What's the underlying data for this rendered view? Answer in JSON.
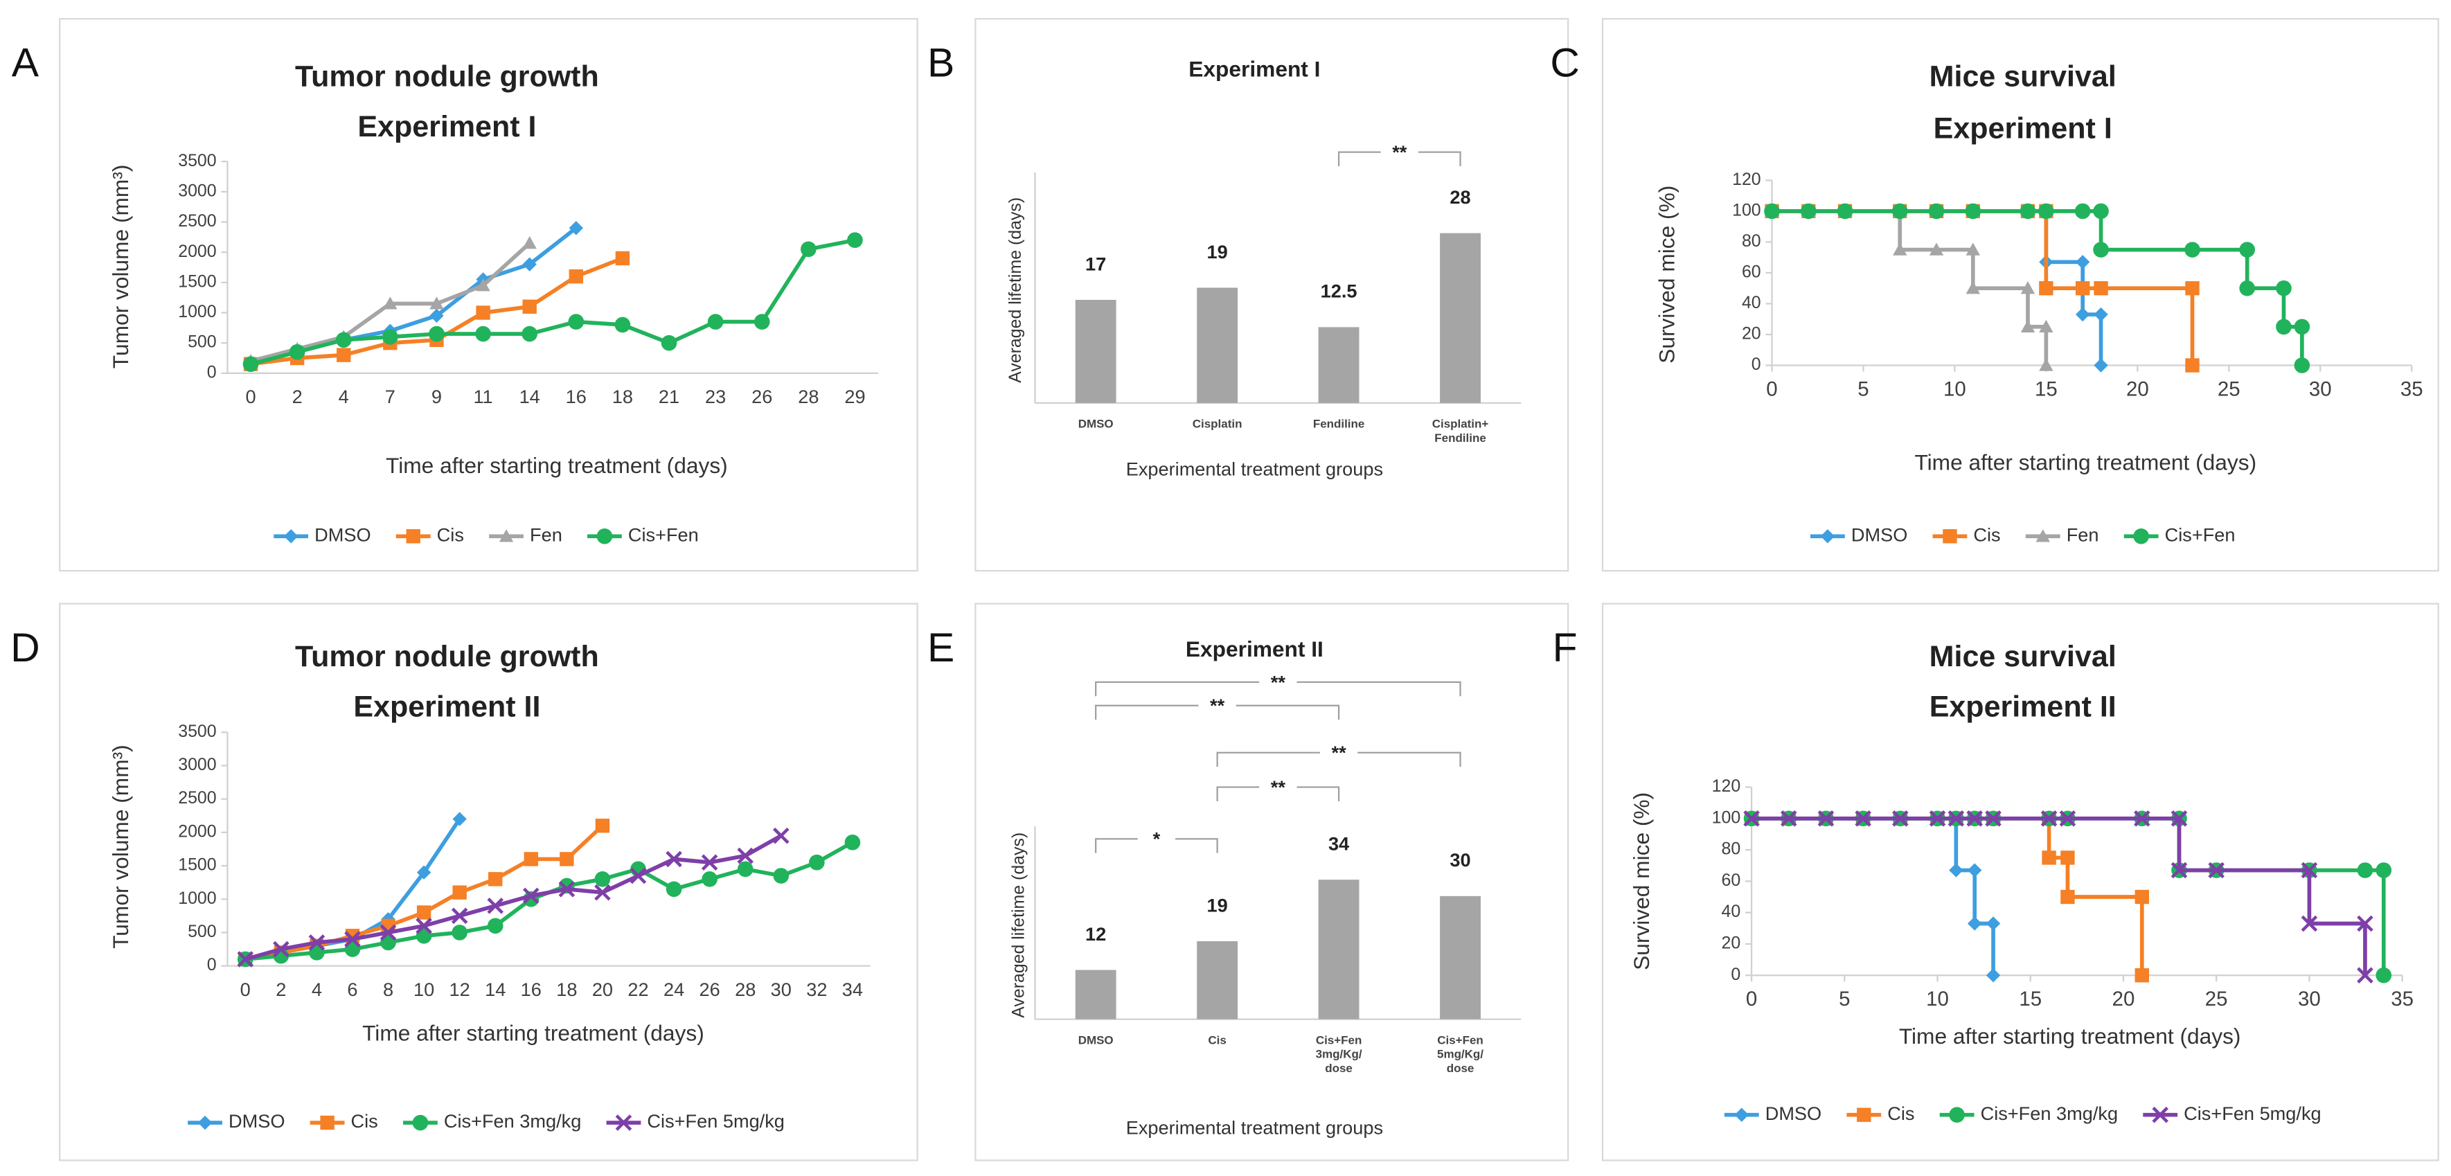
{
  "chart_data": [
    {
      "panel": "A",
      "type": "line",
      "title": "Tumor nodule growth",
      "subtitle": "Experiment I",
      "x_label": "Time after starting treatment (days)",
      "y_label": "Tumor volume (mm³)",
      "categories": [
        "0",
        "2",
        "4",
        "7",
        "9",
        "11",
        "14",
        "16",
        "18",
        "21",
        "23",
        "26",
        "28",
        "29"
      ],
      "ylim": [
        0,
        3500
      ],
      "yticks": [
        0,
        500,
        1000,
        1500,
        2000,
        2500,
        3000,
        3500
      ],
      "legend": "bottom",
      "series": [
        {
          "name": "DMSO",
          "color": "#3d9ee0",
          "marker": "diamond",
          "values": [
            150,
            350,
            550,
            700,
            950,
            1550,
            1800,
            2400,
            null,
            null,
            null,
            null,
            null,
            null
          ]
        },
        {
          "name": "Cis",
          "color": "#f58025",
          "marker": "square",
          "values": [
            150,
            250,
            300,
            500,
            550,
            1000,
            1100,
            1600,
            1900,
            null,
            null,
            null,
            null,
            null
          ]
        },
        {
          "name": "Fen",
          "color": "#a5a5a5",
          "marker": "triangle",
          "values": [
            200,
            400,
            600,
            1150,
            1150,
            1450,
            2150,
            null,
            null,
            null,
            null,
            null,
            null,
            null
          ]
        },
        {
          "name": "Cis+Fen",
          "color": "#21b35b",
          "marker": "circle",
          "values": [
            150,
            350,
            550,
            600,
            650,
            650,
            650,
            850,
            800,
            500,
            850,
            850,
            2050,
            2200
          ]
        }
      ]
    },
    {
      "panel": "B",
      "type": "bar",
      "title": "Experiment I",
      "x_label": "Experimental treatment groups",
      "y_label": "Averaged lifetime (days)",
      "categories": [
        "DMSO",
        "Cisplatin",
        "Fendiline",
        "Cisplatin+\nFendiline"
      ],
      "values": [
        17,
        19,
        12.5,
        28
      ],
      "color": "#a5a5a5",
      "ylim": [
        0,
        38
      ],
      "significance": [
        {
          "label": "**",
          "from": 2,
          "to": 3
        }
      ]
    },
    {
      "panel": "C",
      "type": "line",
      "title": "Mice survival",
      "subtitle": "Experiment I",
      "x_label": "Time after starting treatment (days)",
      "y_label": "Survived mice (%)",
      "xlim": [
        0,
        35
      ],
      "xticks": [
        0,
        5,
        10,
        15,
        20,
        25,
        30,
        35
      ],
      "ylim": [
        0,
        120
      ],
      "yticks": [
        0,
        20,
        40,
        60,
        80,
        100,
        120
      ],
      "legend": "bottom",
      "series": [
        {
          "name": "DMSO",
          "color": "#3d9ee0",
          "marker": "diamond",
          "x": [
            0,
            2,
            4,
            7,
            9,
            11,
            14,
            15,
            15,
            17,
            17,
            18,
            18
          ],
          "values": [
            100,
            100,
            100,
            100,
            100,
            100,
            100,
            100,
            67,
            67,
            33,
            33,
            0
          ]
        },
        {
          "name": "Cis",
          "color": "#f58025",
          "marker": "square",
          "x": [
            0,
            2,
            4,
            7,
            9,
            11,
            14,
            15,
            15,
            17,
            18,
            23,
            23
          ],
          "values": [
            100,
            100,
            100,
            100,
            100,
            100,
            100,
            100,
            50,
            50,
            50,
            50,
            0
          ]
        },
        {
          "name": "Fen",
          "color": "#a5a5a5",
          "marker": "triangle",
          "x": [
            0,
            2,
            4,
            7,
            7,
            9,
            11,
            11,
            14,
            14,
            15,
            15
          ],
          "values": [
            100,
            100,
            100,
            100,
            75,
            75,
            75,
            50,
            50,
            25,
            25,
            0
          ]
        },
        {
          "name": "Cis+Fen",
          "color": "#21b35b",
          "marker": "circle",
          "x": [
            0,
            2,
            4,
            7,
            9,
            11,
            14,
            15,
            17,
            18,
            18,
            23,
            26,
            26,
            28,
            28,
            29,
            29
          ],
          "values": [
            100,
            100,
            100,
            100,
            100,
            100,
            100,
            100,
            100,
            100,
            75,
            75,
            75,
            50,
            50,
            25,
            25,
            0
          ]
        }
      ]
    },
    {
      "panel": "D",
      "type": "line",
      "title": "Tumor nodule growth",
      "subtitle": "Experiment II",
      "x_label": "Time after starting treatment (days)",
      "y_label": "Tumor volume (mm³)",
      "categories": [
        "0",
        "2",
        "4",
        "6",
        "8",
        "10",
        "12",
        "14",
        "16",
        "18",
        "20",
        "22",
        "24",
        "26",
        "28",
        "30",
        "32",
        "34"
      ],
      "ylim": [
        0,
        3500
      ],
      "yticks": [
        0,
        500,
        1000,
        1500,
        2000,
        2500,
        3000,
        3500
      ],
      "legend": "bottom",
      "series": [
        {
          "name": "DMSO",
          "color": "#3d9ee0",
          "marker": "diamond",
          "values": [
            100,
            200,
            300,
            400,
            700,
            1400,
            2200,
            null,
            null,
            null,
            null,
            null,
            null,
            null,
            null,
            null,
            null,
            null
          ]
        },
        {
          "name": "Cis",
          "color": "#f58025",
          "marker": "square",
          "values": [
            100,
            200,
            300,
            450,
            600,
            800,
            1100,
            1300,
            1600,
            1600,
            2100,
            null,
            null,
            null,
            null,
            null,
            null,
            null
          ]
        },
        {
          "name": "Cis+Fen 3mg/kg",
          "color": "#21b35b",
          "marker": "circle",
          "values": [
            100,
            150,
            200,
            250,
            350,
            450,
            500,
            600,
            1000,
            1200,
            1300,
            1450,
            1150,
            1300,
            1450,
            1350,
            1550,
            1850
          ]
        },
        {
          "name": "Cis+Fen 5mg/kg",
          "color": "#7e3fa8",
          "marker": "x",
          "values": [
            100,
            250,
            350,
            400,
            500,
            600,
            750,
            900,
            1050,
            1150,
            1100,
            1350,
            1600,
            1550,
            1650,
            1950,
            null,
            null
          ]
        }
      ]
    },
    {
      "panel": "E",
      "type": "bar",
      "title": "Experiment II",
      "x_label": "Experimental treatment groups",
      "y_label": "Averaged lifetime (days)",
      "categories": [
        "DMSO",
        "Cis",
        "Cis+Fen\n3mg/Kg/\ndose",
        "Cis+Fen\n5mg/Kg/\ndose"
      ],
      "values": [
        12,
        19,
        34,
        30
      ],
      "color": "#a5a5a5",
      "ylim": [
        0,
        47
      ],
      "significance": [
        {
          "label": "*",
          "from": 0,
          "to": 1
        },
        {
          "label": "**",
          "from": 1,
          "to": 2
        },
        {
          "label": "**",
          "from": 1,
          "to": 3
        },
        {
          "label": "**",
          "from": 0,
          "to": 2
        },
        {
          "label": "**",
          "from": 0,
          "to": 3
        }
      ]
    },
    {
      "panel": "F",
      "type": "line",
      "title": "Mice survival",
      "subtitle": "Experiment II",
      "x_label": "Time after starting treatment (days)",
      "y_label": "Survived mice (%)",
      "xlim": [
        0,
        35
      ],
      "xticks": [
        0,
        5,
        10,
        15,
        20,
        25,
        30,
        35
      ],
      "ylim": [
        0,
        120
      ],
      "yticks": [
        0,
        20,
        40,
        60,
        80,
        100,
        120
      ],
      "legend": "bottom",
      "series": [
        {
          "name": "DMSO",
          "color": "#3d9ee0",
          "marker": "diamond",
          "x": [
            0,
            2,
            4,
            6,
            8,
            10,
            11,
            11,
            12,
            12,
            13,
            13
          ],
          "values": [
            100,
            100,
            100,
            100,
            100,
            100,
            100,
            67,
            67,
            33,
            33,
            0
          ]
        },
        {
          "name": "Cis",
          "color": "#f58025",
          "marker": "square",
          "x": [
            0,
            2,
            4,
            6,
            8,
            10,
            11,
            12,
            13,
            16,
            16,
            17,
            17,
            21,
            21
          ],
          "values": [
            100,
            100,
            100,
            100,
            100,
            100,
            100,
            100,
            100,
            100,
            75,
            75,
            50,
            50,
            0
          ]
        },
        {
          "name": "Cis+Fen 3mg/kg",
          "color": "#21b35b",
          "marker": "circle",
          "x": [
            0,
            2,
            4,
            6,
            8,
            10,
            11,
            12,
            13,
            16,
            17,
            21,
            23,
            23,
            25,
            30,
            33,
            34,
            34
          ],
          "values": [
            100,
            100,
            100,
            100,
            100,
            100,
            100,
            100,
            100,
            100,
            100,
            100,
            100,
            67,
            67,
            67,
            67,
            67,
            0
          ]
        },
        {
          "name": "Cis+Fen 5mg/kg",
          "color": "#7e3fa8",
          "marker": "x",
          "x": [
            0,
            2,
            4,
            6,
            8,
            10,
            11,
            12,
            13,
            16,
            17,
            21,
            23,
            23,
            25,
            30,
            30,
            33,
            33
          ],
          "values": [
            100,
            100,
            100,
            100,
            100,
            100,
            100,
            100,
            100,
            100,
            100,
            100,
            100,
            67,
            67,
            67,
            33,
            33,
            0
          ]
        }
      ]
    }
  ]
}
